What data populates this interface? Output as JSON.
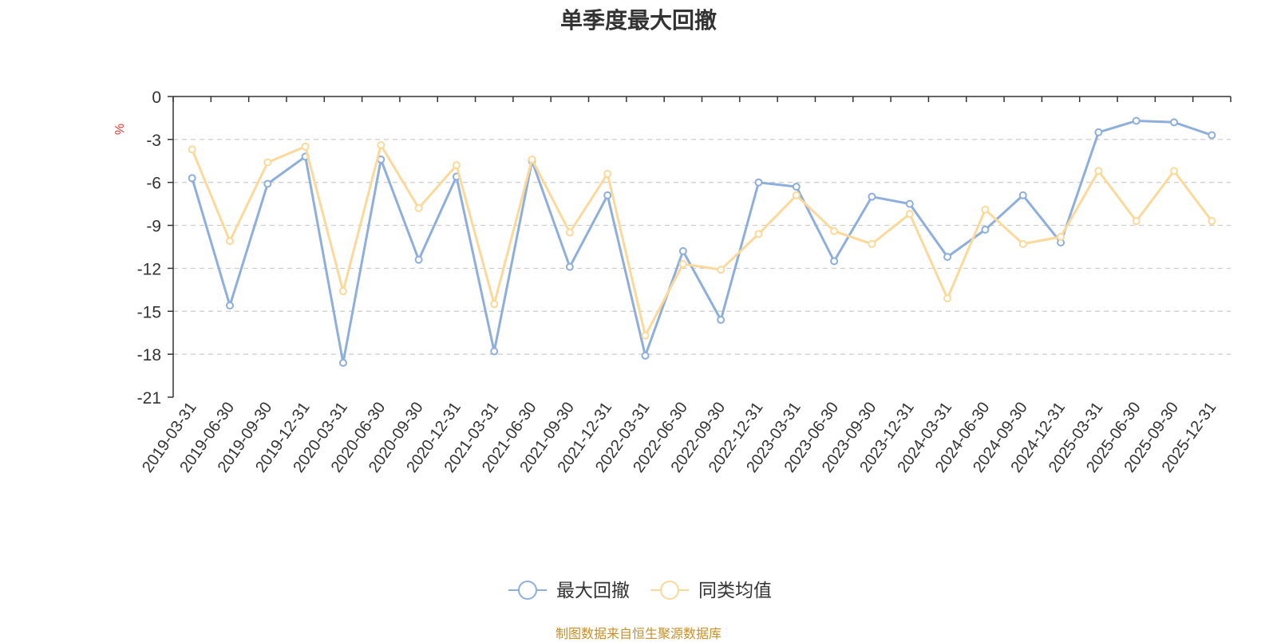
{
  "chart_data": {
    "type": "line",
    "title": "单季度最大回撤",
    "ylabel": "%",
    "xlabel": "",
    "ylim": [
      -21,
      0
    ],
    "yticks": [
      0,
      -3,
      -6,
      -9,
      -12,
      -15,
      -18,
      -21
    ],
    "categories": [
      "2019-03-31",
      "2019-06-30",
      "2019-09-30",
      "2019-12-31",
      "2020-03-31",
      "2020-06-30",
      "2020-09-30",
      "2020-12-31",
      "2021-03-31",
      "2021-06-30",
      "2021-09-30",
      "2021-12-31",
      "2022-03-31",
      "2022-06-30",
      "2022-09-30",
      "2022-12-31",
      "2023-03-31",
      "2023-06-30",
      "2023-09-30",
      "2023-12-31",
      "2024-03-31",
      "2024-06-30",
      "2024-09-30",
      "2024-12-31",
      "2025-03-31",
      "2025-06-30",
      "2025-09-30",
      "2025-12-31"
    ],
    "series": [
      {
        "name": "最大回撤",
        "color": "#8eaedb",
        "values": [
          -5.7,
          -14.6,
          -6.1,
          -4.2,
          -18.6,
          -4.4,
          -11.4,
          -5.6,
          -17.8,
          -4.5,
          -11.9,
          -6.9,
          -18.1,
          -10.8,
          -15.6,
          -6.0,
          -6.3,
          -11.5,
          -7.0,
          -7.5,
          -11.2,
          -9.3,
          -6.9,
          -10.2,
          -2.5,
          -1.7,
          -1.8,
          -2.7
        ]
      },
      {
        "name": "同类均值",
        "color": "#fbd99a",
        "values": [
          -3.7,
          -10.1,
          -4.6,
          -3.5,
          -13.6,
          -3.4,
          -7.8,
          -4.8,
          -14.5,
          -4.4,
          -9.5,
          -5.4,
          -16.7,
          -11.7,
          -12.1,
          -9.6,
          -6.9,
          -9.4,
          -10.3,
          -8.2,
          -14.1,
          -7.9,
          -10.3,
          -9.8,
          -5.2,
          -8.7,
          -5.2,
          -8.7
        ]
      }
    ],
    "grid": true,
    "legend_position": "bottom-center"
  },
  "source_note": "制图数据来自恒生聚源数据库"
}
